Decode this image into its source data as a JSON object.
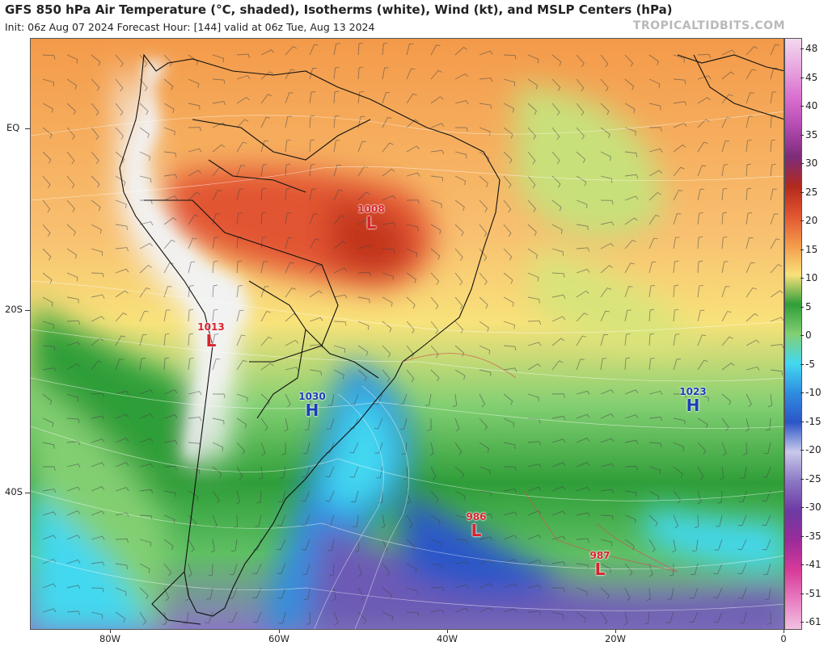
{
  "header": {
    "title": "GFS 850 hPa Air Temperature (°C, shaded), Isotherms (white), Wind (kt), and MSLP Centers (hPa)",
    "subtitle": "Init: 06z Aug 07 2024   Forecast Hour: [144]   valid at 06z Tue, Aug 13 2024",
    "brand": "TROPICALTIDBITS.COM"
  },
  "axes": {
    "lat_labels": [
      "EQ",
      "20S",
      "40S"
    ],
    "lon_labels": [
      "80W",
      "60W",
      "40W",
      "20W",
      "0"
    ]
  },
  "colorbar": {
    "labels": [
      "48",
      "45",
      "40",
      "35",
      "30",
      "25",
      "20",
      "15",
      "10",
      "5",
      "0",
      "-5",
      "-10",
      "-15",
      "-20",
      "-25",
      "-30",
      "-35",
      "-41",
      "-51",
      "-61"
    ],
    "colors": [
      "#f2d9ee",
      "#e8a6df",
      "#d96fce",
      "#b24ab0",
      "#7d2c7a",
      "#b22a1c",
      "#e25530",
      "#f39a4a",
      "#f8e27a",
      "#2f9e38",
      "#82cf72",
      "#43d8f0",
      "#2e8de0",
      "#2b56c8",
      "#c9c9ea",
      "#8a77c4",
      "#6d3aa3",
      "#9a2c9a",
      "#d83a9a",
      "#e77cc0",
      "#f2c1e3"
    ]
  },
  "pressure_centers": [
    {
      "type": "L",
      "value": "1008"
    },
    {
      "type": "L",
      "value": "1013"
    },
    {
      "type": "H",
      "value": "1030"
    },
    {
      "type": "H",
      "value": "1023"
    },
    {
      "type": "L",
      "value": "986"
    },
    {
      "type": "L",
      "value": "987"
    }
  ],
  "colors": {
    "low_center": "#d8232a",
    "high_center": "#1a3fb5",
    "isotherm": "#ffffff",
    "coastline": "#000000"
  }
}
